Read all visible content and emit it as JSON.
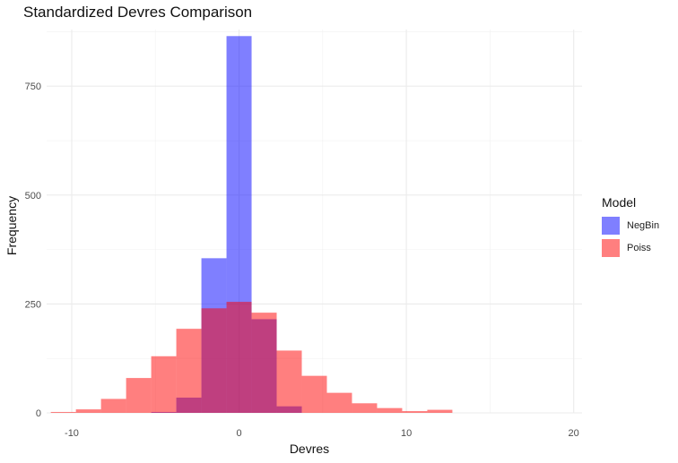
{
  "chart_data": {
    "type": "histogram",
    "title": "Standardized Devres Comparison",
    "xlabel": "Devres",
    "ylabel": "Frequency",
    "xlim": [
      -11.5,
      20.5
    ],
    "ylim": [
      0,
      880
    ],
    "x_ticks": [
      -10,
      0,
      10,
      20
    ],
    "y_ticks": [
      0,
      250,
      500,
      750
    ],
    "grid": true,
    "bin_width": 1.5,
    "legend": {
      "title": "Model",
      "position": "right"
    },
    "series": [
      {
        "name": "NegBin",
        "color": "#7f7fff",
        "bins": [
          {
            "x0": -5.25,
            "x1": -3.75,
            "value": 2
          },
          {
            "x0": -3.75,
            "x1": -2.25,
            "value": 35
          },
          {
            "x0": -2.25,
            "x1": -0.75,
            "value": 355
          },
          {
            "x0": -0.75,
            "x1": 0.75,
            "value": 865
          },
          {
            "x0": 0.75,
            "x1": 2.25,
            "value": 215
          },
          {
            "x0": 2.25,
            "x1": 3.75,
            "value": 15
          }
        ]
      },
      {
        "name": "Poiss",
        "color": "#ff7f7f",
        "bins": [
          {
            "x0": -11.25,
            "x1": -9.75,
            "value": 2
          },
          {
            "x0": -9.75,
            "x1": -8.25,
            "value": 8
          },
          {
            "x0": -8.25,
            "x1": -6.75,
            "value": 32
          },
          {
            "x0": -6.75,
            "x1": -5.25,
            "value": 80
          },
          {
            "x0": -5.25,
            "x1": -3.75,
            "value": 130
          },
          {
            "x0": -3.75,
            "x1": -2.25,
            "value": 193
          },
          {
            "x0": -2.25,
            "x1": -0.75,
            "value": 240
          },
          {
            "x0": -0.75,
            "x1": 0.75,
            "value": 255
          },
          {
            "x0": 0.75,
            "x1": 2.25,
            "value": 230
          },
          {
            "x0": 2.25,
            "x1": 3.75,
            "value": 143
          },
          {
            "x0": 3.75,
            "x1": 5.25,
            "value": 85
          },
          {
            "x0": 5.25,
            "x1": 6.75,
            "value": 46
          },
          {
            "x0": 6.75,
            "x1": 8.25,
            "value": 22
          },
          {
            "x0": 8.25,
            "x1": 9.75,
            "value": 11
          },
          {
            "x0": 9.75,
            "x1": 11.25,
            "value": 4
          },
          {
            "x0": 11.25,
            "x1": 12.75,
            "value": 7
          }
        ]
      }
    ]
  }
}
